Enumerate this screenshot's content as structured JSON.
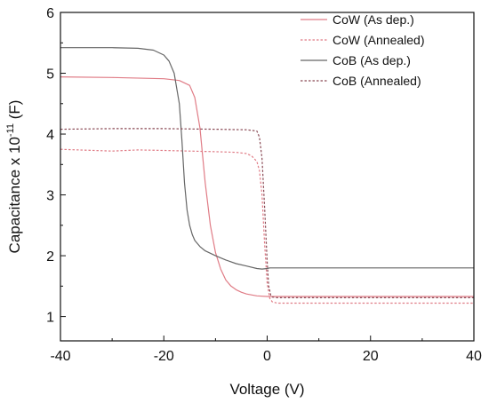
{
  "chart_data": {
    "type": "line",
    "xlabel": "Voltage (V)",
    "ylabel": "Capacitance x 10",
    "ylabel_exponent": "-11",
    "ylabel_unit": " (F)",
    "xlim": [
      -40,
      40
    ],
    "ylim": [
      0.6,
      6.0
    ],
    "x_ticks": [
      -40,
      -20,
      0,
      20,
      40
    ],
    "y_ticks": [
      1,
      2,
      3,
      4,
      5,
      6
    ],
    "grid": false,
    "legend_position": "top-right",
    "series": [
      {
        "name": "CoW (As dep.)",
        "color": "#e07c86",
        "dash": "solid",
        "x": [
          -40,
          -30,
          -20,
          -17,
          -15,
          -14,
          -13,
          -12,
          -11,
          -10,
          -9,
          -8,
          -7,
          -6,
          -5,
          -4,
          -2,
          0,
          5,
          10,
          20,
          30,
          40
        ],
        "y": [
          4.94,
          4.93,
          4.91,
          4.88,
          4.8,
          4.6,
          4.1,
          3.2,
          2.5,
          2.05,
          1.78,
          1.6,
          1.5,
          1.44,
          1.4,
          1.37,
          1.34,
          1.33,
          1.33,
          1.33,
          1.33,
          1.33,
          1.33
        ]
      },
      {
        "name": "CoW (Annealed)",
        "color": "#e07c86",
        "dash": "dotted",
        "x": [
          -40,
          -30,
          -25,
          -20,
          -15,
          -10,
          -6,
          -4,
          -3,
          -2,
          -1.5,
          -1,
          -0.5,
          0,
          0.5,
          1,
          2,
          5,
          10,
          20,
          30,
          40
        ],
        "y": [
          3.75,
          3.72,
          3.74,
          3.73,
          3.72,
          3.71,
          3.7,
          3.68,
          3.64,
          3.55,
          3.4,
          3.0,
          2.2,
          1.55,
          1.3,
          1.24,
          1.22,
          1.22,
          1.22,
          1.22,
          1.22,
          1.22
        ]
      },
      {
        "name": "CoB  (As dep.)",
        "color": "#666666",
        "dash": "solid",
        "x": [
          -40,
          -30,
          -25,
          -22,
          -20,
          -19,
          -18,
          -17,
          -16.5,
          -16,
          -15.5,
          -15,
          -14.5,
          -14,
          -13,
          -12,
          -10,
          -8,
          -6,
          -4,
          -2,
          -1,
          0,
          0.5,
          5,
          10,
          20,
          30,
          40
        ],
        "y": [
          5.42,
          5.42,
          5.41,
          5.38,
          5.3,
          5.2,
          5.0,
          4.5,
          3.9,
          3.2,
          2.75,
          2.5,
          2.35,
          2.25,
          2.15,
          2.08,
          2.0,
          1.93,
          1.87,
          1.83,
          1.79,
          1.78,
          1.79,
          1.8,
          1.8,
          1.8,
          1.8,
          1.8,
          1.8
        ]
      },
      {
        "name": "CoB  (Annealed)",
        "color": "#8a4a55",
        "dash": "dotted",
        "x": [
          -40,
          -30,
          -20,
          -10,
          -4,
          -2,
          -1.5,
          -1,
          -0.5,
          0,
          0.3,
          0.7,
          1,
          2,
          5,
          10,
          20,
          30,
          40
        ],
        "y": [
          4.08,
          4.09,
          4.09,
          4.08,
          4.07,
          4.05,
          3.95,
          3.6,
          2.8,
          1.9,
          1.5,
          1.35,
          1.32,
          1.31,
          1.31,
          1.31,
          1.31,
          1.31,
          1.31
        ]
      }
    ]
  }
}
